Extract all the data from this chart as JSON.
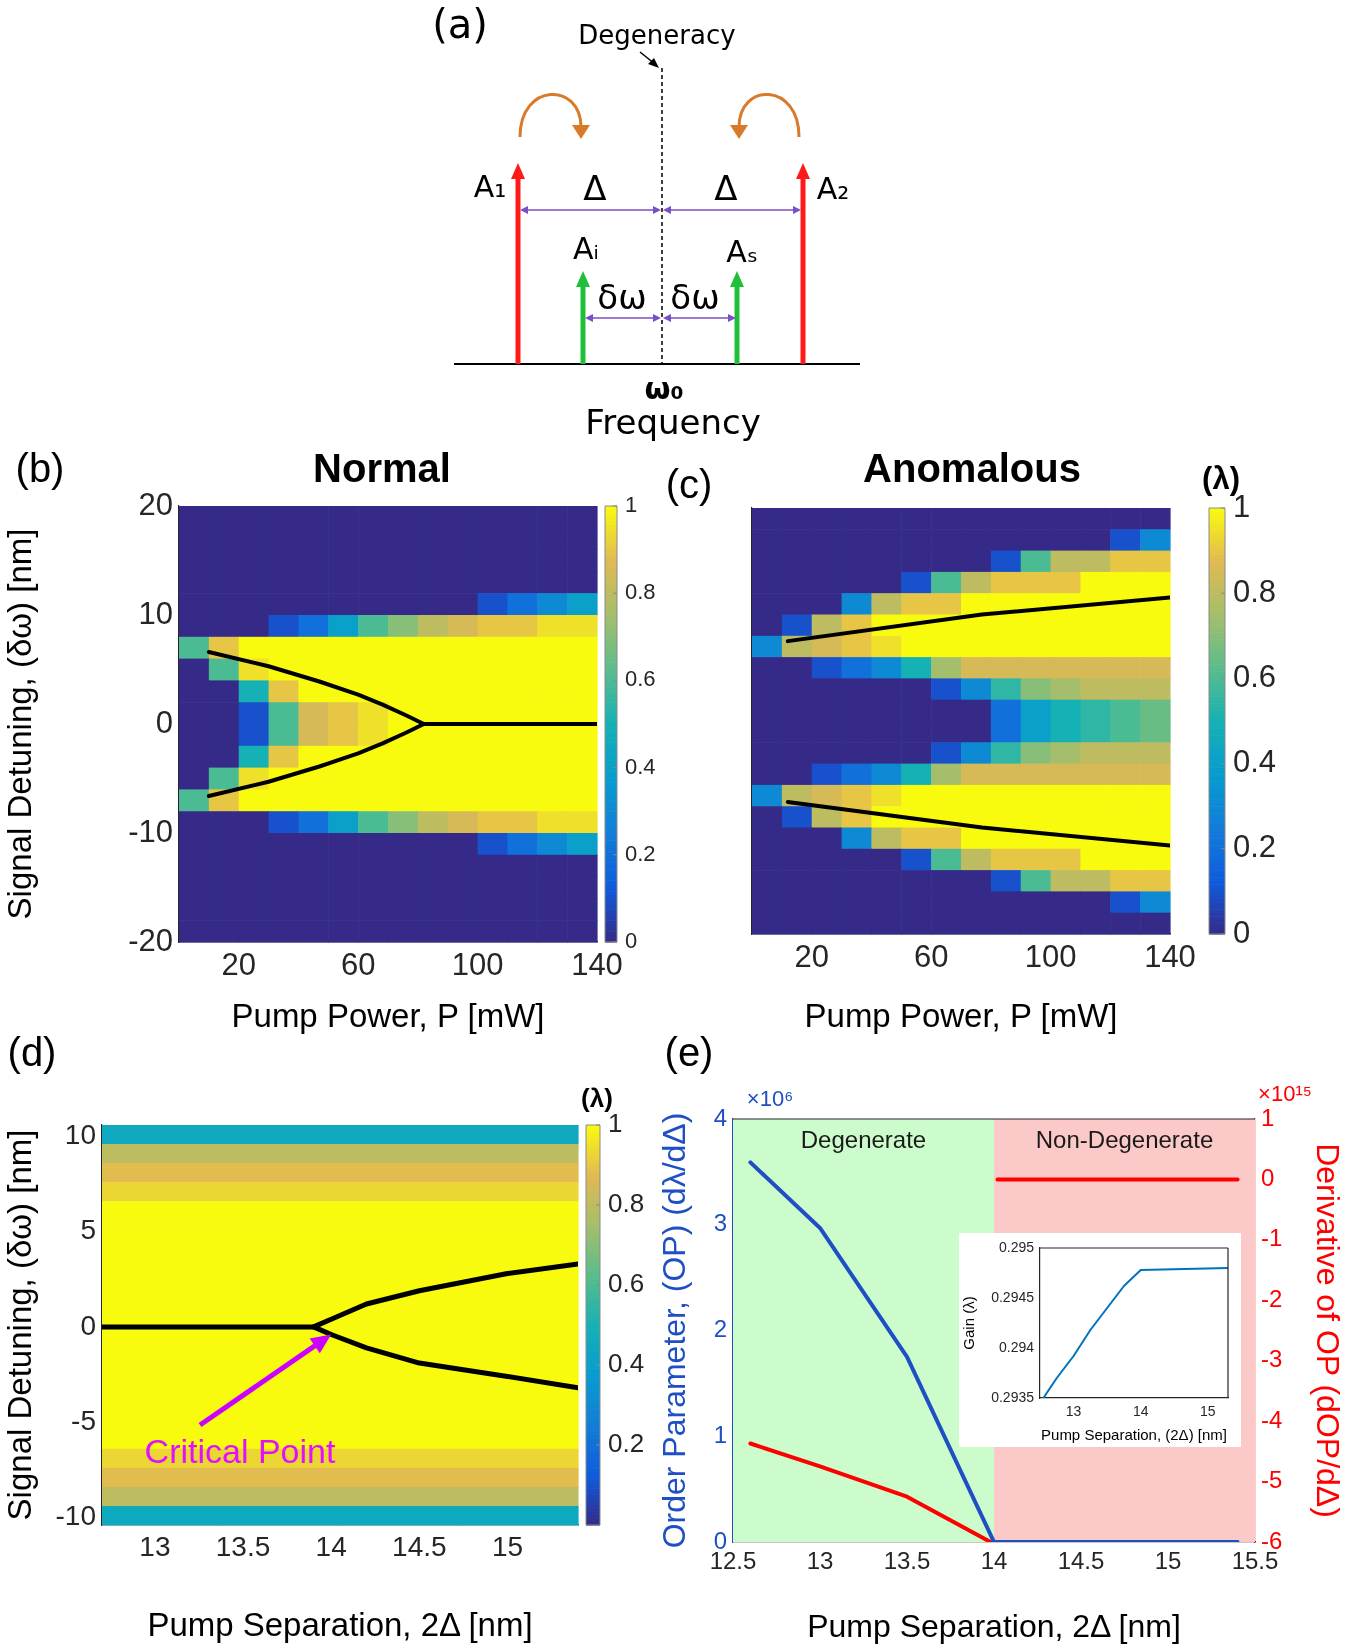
{
  "chart_data": [
    {
      "type": "other",
      "annotations": [
        "(a)",
        "Degeneracy",
        "A₁",
        "Δ",
        "Δ",
        "A₂",
        "Aᵢ",
        "Aₛ",
        "δω",
        "δω",
        "ω₀",
        "Frequency"
      ]
    },
    {
      "type": "heatmap",
      "title": "Normal",
      "xlabel": "Pump Power, P [mW]",
      "ylabel": "Signal Detuning, (δω) [nm]",
      "annotations": [
        "(b)"
      ],
      "xlim": [
        0,
        140
      ],
      "xticks": [
        20,
        60,
        100,
        140
      ],
      "ylim": [
        -20,
        20
      ],
      "yticks": [
        -20,
        -10,
        0,
        10,
        20
      ],
      "clim": [
        0,
        1
      ],
      "cticks": [
        0,
        0.2,
        0.4,
        0.6,
        0.8,
        1
      ],
      "cells": [
        [
          0,
          0,
          0,
          0,
          0,
          0,
          0,
          0,
          0,
          0,
          0,
          0,
          0,
          0
        ],
        [
          0,
          0,
          0,
          0,
          0,
          0,
          0,
          0,
          0,
          0,
          0,
          0,
          0,
          0
        ],
        [
          0,
          0,
          0,
          0,
          0,
          0,
          0,
          0,
          0,
          0,
          0,
          0,
          0,
          0
        ],
        [
          0,
          0,
          0,
          0,
          0,
          0,
          0,
          0,
          0,
          0,
          0,
          0,
          0,
          0
        ],
        [
          0,
          0,
          0,
          0,
          0,
          0,
          0,
          0,
          0,
          0,
          0.1,
          0.2,
          0.3,
          0.4
        ],
        [
          0,
          0,
          0,
          0.1,
          0.2,
          0.4,
          0.6,
          0.7,
          0.8,
          0.85,
          0.9,
          0.9,
          0.95,
          0.95
        ],
        [
          0.6,
          0.9,
          1,
          1,
          1,
          1,
          1,
          1,
          1,
          1,
          1,
          1,
          1,
          1
        ],
        [
          0,
          0.6,
          0.95,
          1,
          1,
          1,
          1,
          1,
          1,
          1,
          1,
          1,
          1,
          1
        ],
        [
          0,
          0,
          0.5,
          0.9,
          1,
          1,
          1,
          1,
          1,
          1,
          1,
          1,
          1,
          1
        ],
        [
          0,
          0,
          0.1,
          0.6,
          0.85,
          0.9,
          0.95,
          1,
          1,
          1,
          1,
          1,
          1,
          1
        ],
        [
          0,
          0,
          0.1,
          0.6,
          0.85,
          0.9,
          0.95,
          1,
          1,
          1,
          1,
          1,
          1,
          1
        ],
        [
          0,
          0,
          0.5,
          0.9,
          1,
          1,
          1,
          1,
          1,
          1,
          1,
          1,
          1,
          1
        ],
        [
          0,
          0.6,
          0.95,
          1,
          1,
          1,
          1,
          1,
          1,
          1,
          1,
          1,
          1,
          1
        ],
        [
          0.6,
          0.9,
          1,
          1,
          1,
          1,
          1,
          1,
          1,
          1,
          1,
          1,
          1,
          1
        ],
        [
          0,
          0,
          0,
          0.1,
          0.2,
          0.4,
          0.6,
          0.7,
          0.8,
          0.85,
          0.9,
          0.9,
          0.95,
          0.95
        ],
        [
          0,
          0,
          0,
          0,
          0,
          0,
          0,
          0,
          0,
          0,
          0.1,
          0.2,
          0.3,
          0.4
        ],
        [
          0,
          0,
          0,
          0,
          0,
          0,
          0,
          0,
          0,
          0,
          0,
          0,
          0,
          0
        ],
        [
          0,
          0,
          0,
          0,
          0,
          0,
          0,
          0,
          0,
          0,
          0,
          0,
          0,
          0
        ],
        [
          0,
          0,
          0,
          0,
          0,
          0,
          0,
          0,
          0,
          0,
          0,
          0,
          0,
          0
        ],
        [
          0,
          0,
          0,
          0,
          0,
          0,
          0,
          0,
          0,
          0,
          0,
          0,
          0,
          0
        ]
      ],
      "series": [
        {
          "type": "line",
          "color": "#000000",
          "x": [
            10,
            30,
            47,
            60,
            68,
            76,
            82,
            140
          ],
          "values": [
            6.6,
            5.3,
            3.9,
            2.7,
            1.8,
            0.8,
            0,
            0
          ]
        },
        {
          "type": "line",
          "color": "#000000",
          "x": [
            10,
            30,
            47,
            60,
            68,
            76,
            82
          ],
          "values": [
            -6.6,
            -5.3,
            -3.9,
            -2.7,
            -1.8,
            -0.8,
            0
          ]
        }
      ]
    },
    {
      "type": "heatmap",
      "title": "Anomalous",
      "xlabel": "Pump Power, P [mW]",
      "annotations": [
        "(c)"
      ],
      "tick_labels": "x",
      "xlim": [
        0,
        140
      ],
      "xticks": [
        20,
        60,
        100,
        140
      ],
      "ylim": [
        -20,
        20
      ],
      "yticks": [
        -20,
        -10,
        0,
        10,
        20
      ],
      "clim": [
        0,
        1
      ],
      "cticks": [
        0,
        0.2,
        0.4,
        0.6,
        0.8,
        1
      ],
      "clabel": "(λ)",
      "cells": [
        [
          0,
          0,
          0,
          0,
          0,
          0,
          0,
          0,
          0,
          0,
          0,
          0,
          0,
          0
        ],
        [
          0,
          0,
          0,
          0,
          0,
          0,
          0,
          0,
          0,
          0,
          0,
          0,
          0.1,
          0.3
        ],
        [
          0,
          0,
          0,
          0,
          0,
          0,
          0,
          0,
          0.1,
          0.6,
          0.8,
          0.8,
          0.9,
          0.9
        ],
        [
          0,
          0,
          0,
          0,
          0,
          0.1,
          0.6,
          0.8,
          0.9,
          0.9,
          0.9,
          1,
          1,
          1
        ],
        [
          0,
          0,
          0,
          0.3,
          0.8,
          0.9,
          0.9,
          1,
          1,
          1,
          1,
          1,
          1,
          1
        ],
        [
          0,
          0.1,
          0.8,
          0.9,
          1,
          1,
          1,
          1,
          1,
          1,
          1,
          1,
          1,
          1
        ],
        [
          0.3,
          0.8,
          0.85,
          0.9,
          0.95,
          1,
          1,
          1,
          1,
          1,
          1,
          1,
          1,
          1
        ],
        [
          0,
          0,
          0.1,
          0.2,
          0.3,
          0.5,
          0.75,
          0.85,
          0.85,
          0.85,
          0.85,
          0.85,
          0.85,
          0.85
        ],
        [
          0,
          0,
          0,
          0,
          0,
          0,
          0.1,
          0.3,
          0.55,
          0.7,
          0.75,
          0.8,
          0.8,
          0.8
        ],
        [
          0,
          0,
          0,
          0,
          0,
          0,
          0,
          0,
          0.2,
          0.4,
          0.5,
          0.55,
          0.6,
          0.65
        ],
        [
          0,
          0,
          0,
          0,
          0,
          0,
          0,
          0,
          0.2,
          0.4,
          0.5,
          0.55,
          0.6,
          0.65
        ],
        [
          0,
          0,
          0,
          0,
          0,
          0,
          0.1,
          0.3,
          0.55,
          0.7,
          0.75,
          0.8,
          0.8,
          0.8
        ],
        [
          0,
          0,
          0.1,
          0.2,
          0.3,
          0.5,
          0.75,
          0.85,
          0.85,
          0.85,
          0.85,
          0.85,
          0.85,
          0.85
        ],
        [
          0.3,
          0.8,
          0.85,
          0.9,
          0.95,
          1,
          1,
          1,
          1,
          1,
          1,
          1,
          1,
          1
        ],
        [
          0,
          0.1,
          0.8,
          0.9,
          1,
          1,
          1,
          1,
          1,
          1,
          1,
          1,
          1,
          1
        ],
        [
          0,
          0,
          0,
          0.3,
          0.8,
          0.9,
          0.9,
          1,
          1,
          1,
          1,
          1,
          1,
          1
        ],
        [
          0,
          0,
          0,
          0,
          0,
          0.1,
          0.6,
          0.8,
          0.9,
          0.9,
          0.9,
          1,
          1,
          1
        ],
        [
          0,
          0,
          0,
          0,
          0,
          0,
          0,
          0,
          0.1,
          0.6,
          0.8,
          0.8,
          0.9,
          0.9
        ],
        [
          0,
          0,
          0,
          0,
          0,
          0,
          0,
          0,
          0,
          0,
          0,
          0,
          0.1,
          0.3
        ],
        [
          0,
          0,
          0,
          0,
          0,
          0,
          0,
          0,
          0,
          0,
          0,
          0,
          0,
          0
        ]
      ],
      "series": [
        {
          "type": "line",
          "color": "#000000",
          "x": [
            12,
            77,
            140
          ],
          "values": [
            7.5,
            10,
            11.6
          ]
        },
        {
          "type": "line",
          "color": "#000000",
          "x": [
            12,
            77,
            140
          ],
          "values": [
            -7.6,
            -10,
            -11.7
          ]
        }
      ]
    },
    {
      "type": "heatmap",
      "xlabel": "Pump Separation, 2Δ [nm]",
      "ylabel": "Signal Detuning, (δω) [nm]",
      "annotations": [
        "(d)",
        {
          "text": "Critical Point",
          "x": 14,
          "y": -0.4
        }
      ],
      "xlim": [
        12.7,
        15.4
      ],
      "xticks": [
        13,
        13.5,
        14,
        14.5,
        15
      ],
      "ylim": [
        -10.4,
        10.6
      ],
      "yticks": [
        -10,
        -5,
        0,
        5,
        10
      ],
      "clim": [
        0,
        1
      ],
      "cticks": [
        0.2,
        0.4,
        0.6,
        0.8,
        1
      ],
      "clabel": "(λ)",
      "cells": [
        [
          0.45,
          0.45,
          0.45,
          0.45
        ],
        [
          0.8,
          0.8,
          0.8,
          0.8
        ],
        [
          0.88,
          0.88,
          0.88,
          0.88
        ],
        [
          0.93,
          0.93,
          0.93,
          0.93
        ],
        [
          1,
          1,
          1,
          1
        ],
        [
          1,
          1,
          1,
          1
        ],
        [
          1,
          1,
          1,
          1
        ],
        [
          1,
          1,
          1,
          1
        ],
        [
          1,
          1,
          1,
          1
        ],
        [
          1,
          1,
          1,
          1
        ],
        [
          1,
          1,
          1,
          1
        ],
        [
          1,
          1,
          1,
          1
        ],
        [
          1,
          1,
          1,
          1
        ],
        [
          1,
          1,
          1,
          1
        ],
        [
          1,
          1,
          1,
          1
        ],
        [
          1,
          1,
          1,
          1
        ],
        [
          1,
          1,
          1,
          1
        ],
        [
          0.93,
          0.93,
          0.93,
          0.93
        ],
        [
          0.88,
          0.88,
          0.88,
          0.88
        ],
        [
          0.8,
          0.8,
          0.8,
          0.8
        ],
        [
          0.45,
          0.45,
          0.45,
          0.45
        ]
      ],
      "series": [
        {
          "type": "line",
          "color": "#000000",
          "x": [
            12.7,
            13.9,
            14,
            14.2,
            14.5,
            15,
            15.4
          ],
          "values": [
            0,
            0,
            0.4,
            1.2,
            1.9,
            2.8,
            3.3
          ]
        },
        {
          "type": "line",
          "color": "#000000",
          "x": [
            13.9,
            14,
            14.2,
            14.5,
            15,
            15.4
          ],
          "values": [
            0,
            -0.4,
            -1.1,
            -1.9,
            -2.6,
            -3.2
          ]
        }
      ]
    },
    {
      "type": "line",
      "xlabel": "Pump Separation, 2Δ [nm]",
      "ylabel": "Order Parameter, (OP) (dλ/dΔ)",
      "y2label": "Derivative of OP (dOP/dΔ)",
      "annotations": [
        "(e)",
        "×10⁶",
        "×10¹⁵"
      ],
      "xlim": [
        12.5,
        15.5
      ],
      "xticks": [
        12.5,
        13,
        13.5,
        14,
        14.5,
        15,
        15.5
      ],
      "ylim": [
        0,
        4
      ],
      "yticks": [
        0,
        1,
        2,
        3,
        4
      ],
      "y2lim": [
        -6,
        1
      ],
      "y2ticks": [
        -6,
        -5,
        -4,
        -3,
        -2,
        -1,
        0,
        1
      ],
      "bands": [
        {
          "axis": "x",
          "from": 12.5,
          "to": 14,
          "label": "Degenerate",
          "color": "#ccfccc"
        },
        {
          "axis": "x",
          "from": 14,
          "to": 15.5,
          "label": "Non-Degenerate",
          "color": "#fcc9c9"
        }
      ],
      "series": [
        {
          "color": "#1f4fc4",
          "x": [
            12.6,
            13,
            13.5,
            14,
            15.4
          ],
          "values": [
            3.59,
            2.97,
            1.75,
            0,
            0
          ]
        },
        {
          "color": "#ff0000",
          "axis": "y2",
          "x": [
            12.6,
            13,
            13.5,
            13.98,
            14,
            14.02,
            15.4
          ],
          "values": [
            -4.37,
            -4.75,
            -5.25,
            -6,
            null,
            0,
            0
          ]
        }
      ]
    },
    {
      "type": "line",
      "xlabel": "Pump Separation, (2Δ) [nm]",
      "ylabel": "Gain (λ)",
      "xlim": [
        12.5,
        15.3
      ],
      "xticks": [
        13,
        14,
        15
      ],
      "ylim": [
        0.2935,
        0.295
      ],
      "yticks": [
        0.2935,
        0.294,
        0.2945,
        0.295
      ],
      "series": [
        {
          "color": "#0072bd",
          "x": [
            12.55,
            12.75,
            13,
            13.25,
            13.5,
            13.75,
            14,
            15.3
          ],
          "values": [
            0.2935,
            0.2937,
            0.29392,
            0.29418,
            0.2944,
            0.29462,
            0.29478,
            0.2948
          ]
        }
      ]
    }
  ]
}
